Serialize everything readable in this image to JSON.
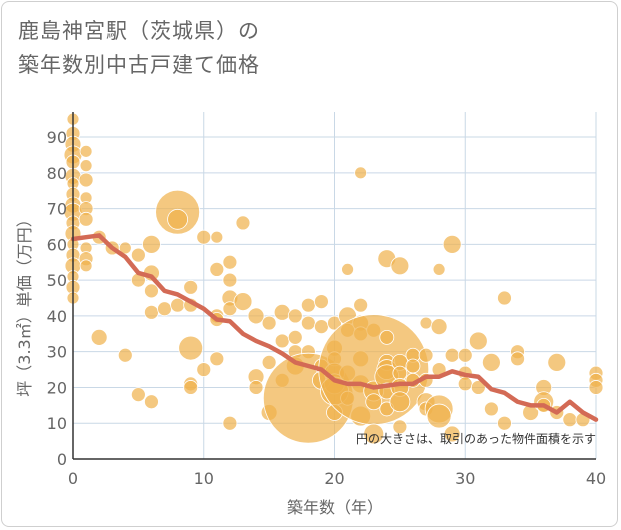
{
  "title_lines": [
    "鹿島神宮駅（茨城県）の",
    "築年数別中古戸建て価格"
  ],
  "note": "円の大きさは、取引のあった物件面積を示す",
  "colors": {
    "bubble": "#f0b04a",
    "line": "#d36a55",
    "grid": "#c9d8e6",
    "axis": "#333333",
    "text": "#666666"
  },
  "chart_data": {
    "type": "scatter",
    "xlabel": "築年数（年）",
    "ylabel": "坪（3.3㎡）単価（万円）",
    "xlim": [
      0,
      40
    ],
    "ylim": [
      0,
      97
    ],
    "xticks": [
      0,
      10,
      20,
      30,
      40
    ],
    "yticks": [
      0,
      10,
      20,
      30,
      40,
      50,
      60,
      70,
      80,
      90
    ],
    "grid": true,
    "bubbles": [
      {
        "x": 0,
        "y": 95,
        "s": 6
      },
      {
        "x": 0,
        "y": 91,
        "s": 7
      },
      {
        "x": 0,
        "y": 88,
        "s": 8
      },
      {
        "x": 0,
        "y": 85,
        "s": 9
      },
      {
        "x": 0,
        "y": 83,
        "s": 7
      },
      {
        "x": 0,
        "y": 79,
        "s": 8
      },
      {
        "x": 0,
        "y": 77,
        "s": 6
      },
      {
        "x": 0,
        "y": 74,
        "s": 7
      },
      {
        "x": 0,
        "y": 71,
        "s": 8
      },
      {
        "x": 0,
        "y": 69,
        "s": 9
      },
      {
        "x": 0,
        "y": 66,
        "s": 7
      },
      {
        "x": 0,
        "y": 63,
        "s": 8
      },
      {
        "x": 0,
        "y": 60,
        "s": 6
      },
      {
        "x": 0,
        "y": 57,
        "s": 7
      },
      {
        "x": 0,
        "y": 54,
        "s": 8
      },
      {
        "x": 0,
        "y": 51,
        "s": 6
      },
      {
        "x": 0,
        "y": 48,
        "s": 7
      },
      {
        "x": 0,
        "y": 45,
        "s": 6
      },
      {
        "x": 1,
        "y": 86,
        "s": 6
      },
      {
        "x": 1,
        "y": 82,
        "s": 6
      },
      {
        "x": 1,
        "y": 78,
        "s": 7
      },
      {
        "x": 1,
        "y": 73,
        "s": 6
      },
      {
        "x": 1,
        "y": 70,
        "s": 7
      },
      {
        "x": 1,
        "y": 67,
        "s": 7
      },
      {
        "x": 1,
        "y": 59,
        "s": 6
      },
      {
        "x": 1,
        "y": 56,
        "s": 7
      },
      {
        "x": 1,
        "y": 54,
        "s": 6
      },
      {
        "x": 2,
        "y": 62,
        "s": 7
      },
      {
        "x": 2,
        "y": 34,
        "s": 8
      },
      {
        "x": 3,
        "y": 59,
        "s": 7
      },
      {
        "x": 4,
        "y": 59,
        "s": 6
      },
      {
        "x": 4,
        "y": 29,
        "s": 7
      },
      {
        "x": 5,
        "y": 57,
        "s": 7
      },
      {
        "x": 5,
        "y": 50,
        "s": 7
      },
      {
        "x": 5,
        "y": 18,
        "s": 7
      },
      {
        "x": 6,
        "y": 60,
        "s": 9
      },
      {
        "x": 6,
        "y": 52,
        "s": 8
      },
      {
        "x": 6,
        "y": 47,
        "s": 7
      },
      {
        "x": 6,
        "y": 41,
        "s": 7
      },
      {
        "x": 6,
        "y": 16,
        "s": 7
      },
      {
        "x": 7,
        "y": 42,
        "s": 7
      },
      {
        "x": 8,
        "y": 69,
        "s": 22
      },
      {
        "x": 8,
        "y": 67,
        "s": 10
      },
      {
        "x": 8,
        "y": 43,
        "s": 7
      },
      {
        "x": 9,
        "y": 48,
        "s": 7
      },
      {
        "x": 9,
        "y": 43,
        "s": 7
      },
      {
        "x": 9,
        "y": 31,
        "s": 12
      },
      {
        "x": 9,
        "y": 21,
        "s": 7
      },
      {
        "x": 9,
        "y": 20,
        "s": 7
      },
      {
        "x": 10,
        "y": 62,
        "s": 7
      },
      {
        "x": 10,
        "y": 25,
        "s": 7
      },
      {
        "x": 11,
        "y": 62,
        "s": 6
      },
      {
        "x": 11,
        "y": 53,
        "s": 7
      },
      {
        "x": 11,
        "y": 40,
        "s": 7
      },
      {
        "x": 11,
        "y": 39,
        "s": 7
      },
      {
        "x": 11,
        "y": 28,
        "s": 7
      },
      {
        "x": 12,
        "y": 55,
        "s": 7
      },
      {
        "x": 12,
        "y": 50,
        "s": 7
      },
      {
        "x": 12,
        "y": 45,
        "s": 8
      },
      {
        "x": 12,
        "y": 42,
        "s": 7
      },
      {
        "x": 12,
        "y": 10,
        "s": 7
      },
      {
        "x": 13,
        "y": 66,
        "s": 7
      },
      {
        "x": 13,
        "y": 44,
        "s": 9
      },
      {
        "x": 14,
        "y": 40,
        "s": 8
      },
      {
        "x": 14,
        "y": 23,
        "s": 8
      },
      {
        "x": 14,
        "y": 20,
        "s": 7
      },
      {
        "x": 15,
        "y": 38,
        "s": 7
      },
      {
        "x": 15,
        "y": 27,
        "s": 7
      },
      {
        "x": 15,
        "y": 13,
        "s": 8
      },
      {
        "x": 16,
        "y": 41,
        "s": 8
      },
      {
        "x": 16,
        "y": 33,
        "s": 7
      },
      {
        "x": 16,
        "y": 22,
        "s": 7
      },
      {
        "x": 17,
        "y": 40,
        "s": 7
      },
      {
        "x": 17,
        "y": 34,
        "s": 7
      },
      {
        "x": 17,
        "y": 30,
        "s": 7
      },
      {
        "x": 17,
        "y": 26,
        "s": 9
      },
      {
        "x": 18,
        "y": 43,
        "s": 7
      },
      {
        "x": 18,
        "y": 38,
        "s": 7
      },
      {
        "x": 18,
        "y": 30,
        "s": 7
      },
      {
        "x": 18,
        "y": 17,
        "s": 45
      },
      {
        "x": 19,
        "y": 44,
        "s": 7
      },
      {
        "x": 19,
        "y": 37,
        "s": 7
      },
      {
        "x": 19,
        "y": 26,
        "s": 7
      },
      {
        "x": 19,
        "y": 22,
        "s": 9
      },
      {
        "x": 20,
        "y": 38,
        "s": 7
      },
      {
        "x": 20,
        "y": 31,
        "s": 8
      },
      {
        "x": 20,
        "y": 28,
        "s": 7
      },
      {
        "x": 20,
        "y": 24,
        "s": 10
      },
      {
        "x": 20,
        "y": 21,
        "s": 10
      },
      {
        "x": 20,
        "y": 19,
        "s": 14
      },
      {
        "x": 20,
        "y": 13,
        "s": 8
      },
      {
        "x": 21,
        "y": 53,
        "s": 6
      },
      {
        "x": 21,
        "y": 40,
        "s": 9
      },
      {
        "x": 21,
        "y": 36,
        "s": 7
      },
      {
        "x": 21,
        "y": 24,
        "s": 8
      },
      {
        "x": 21,
        "y": 17,
        "s": 7
      },
      {
        "x": 22,
        "y": 80,
        "s": 6
      },
      {
        "x": 22,
        "y": 43,
        "s": 7
      },
      {
        "x": 22,
        "y": 38,
        "s": 8
      },
      {
        "x": 22,
        "y": 35,
        "s": 7
      },
      {
        "x": 22,
        "y": 28,
        "s": 8
      },
      {
        "x": 22,
        "y": 21,
        "s": 9
      },
      {
        "x": 22,
        "y": 12,
        "s": 10
      },
      {
        "x": 23,
        "y": 36,
        "s": 7
      },
      {
        "x": 23,
        "y": 25,
        "s": 55
      },
      {
        "x": 23,
        "y": 19,
        "s": 10
      },
      {
        "x": 23,
        "y": 16,
        "s": 8
      },
      {
        "x": 23,
        "y": 7,
        "s": 10
      },
      {
        "x": 24,
        "y": 56,
        "s": 9
      },
      {
        "x": 24,
        "y": 34,
        "s": 7
      },
      {
        "x": 24,
        "y": 27,
        "s": 8
      },
      {
        "x": 24,
        "y": 25,
        "s": 10
      },
      {
        "x": 24,
        "y": 23,
        "s": 12
      },
      {
        "x": 24,
        "y": 19,
        "s": 8
      },
      {
        "x": 24,
        "y": 14,
        "s": 7
      },
      {
        "x": 25,
        "y": 54,
        "s": 9
      },
      {
        "x": 25,
        "y": 27,
        "s": 8
      },
      {
        "x": 25,
        "y": 24,
        "s": 7
      },
      {
        "x": 25,
        "y": 20,
        "s": 9
      },
      {
        "x": 25,
        "y": 16,
        "s": 10
      },
      {
        "x": 25,
        "y": 9,
        "s": 7
      },
      {
        "x": 26,
        "y": 29,
        "s": 7
      },
      {
        "x": 26,
        "y": 26,
        "s": 7
      },
      {
        "x": 26,
        "y": 22,
        "s": 7
      },
      {
        "x": 27,
        "y": 38,
        "s": 6
      },
      {
        "x": 27,
        "y": 29,
        "s": 7
      },
      {
        "x": 27,
        "y": 22,
        "s": 7
      },
      {
        "x": 27,
        "y": 16,
        "s": 9
      },
      {
        "x": 27,
        "y": 14,
        "s": 7
      },
      {
        "x": 28,
        "y": 53,
        "s": 6
      },
      {
        "x": 28,
        "y": 37,
        "s": 8
      },
      {
        "x": 28,
        "y": 25,
        "s": 7
      },
      {
        "x": 28,
        "y": 14,
        "s": 14
      },
      {
        "x": 28,
        "y": 12,
        "s": 12
      },
      {
        "x": 29,
        "y": 60,
        "s": 9
      },
      {
        "x": 29,
        "y": 29,
        "s": 7
      },
      {
        "x": 29,
        "y": 7,
        "s": 8
      },
      {
        "x": 30,
        "y": 29,
        "s": 7
      },
      {
        "x": 30,
        "y": 24,
        "s": 7
      },
      {
        "x": 30,
        "y": 21,
        "s": 7
      },
      {
        "x": 31,
        "y": 33,
        "s": 9
      },
      {
        "x": 31,
        "y": 20,
        "s": 7
      },
      {
        "x": 32,
        "y": 27,
        "s": 9
      },
      {
        "x": 32,
        "y": 14,
        "s": 7
      },
      {
        "x": 33,
        "y": 45,
        "s": 7
      },
      {
        "x": 33,
        "y": 10,
        "s": 7
      },
      {
        "x": 34,
        "y": 30,
        "s": 7
      },
      {
        "x": 34,
        "y": 28,
        "s": 7
      },
      {
        "x": 35,
        "y": 13,
        "s": 8
      },
      {
        "x": 36,
        "y": 20,
        "s": 8
      },
      {
        "x": 36,
        "y": 16,
        "s": 10
      },
      {
        "x": 36,
        "y": 15,
        "s": 7
      },
      {
        "x": 37,
        "y": 27,
        "s": 9
      },
      {
        "x": 37,
        "y": 13,
        "s": 7
      },
      {
        "x": 38,
        "y": 11,
        "s": 7
      },
      {
        "x": 39,
        "y": 11,
        "s": 7
      },
      {
        "x": 40,
        "y": 24,
        "s": 7
      },
      {
        "x": 40,
        "y": 22,
        "s": 7
      },
      {
        "x": 40,
        "y": 20,
        "s": 7
      }
    ],
    "trend": {
      "x": [
        0,
        1,
        2,
        3,
        4,
        5,
        6,
        7,
        8,
        9,
        10,
        11,
        12,
        13,
        14,
        15,
        16,
        17,
        18,
        19,
        20,
        21,
        22,
        23,
        24,
        25,
        26,
        27,
        28,
        29,
        30,
        31,
        32,
        33,
        34,
        35,
        36,
        37,
        38,
        39,
        40
      ],
      "y": [
        61.5,
        62,
        62.5,
        59,
        56.5,
        52,
        51,
        47,
        46,
        44,
        42,
        39,
        38.5,
        35,
        33,
        31.5,
        29.5,
        27,
        26,
        25,
        22,
        21,
        21,
        20,
        20.5,
        21,
        21,
        23,
        23,
        24.5,
        23.5,
        23,
        19.5,
        18.5,
        16,
        15,
        15,
        13,
        16,
        13,
        11
      ]
    }
  }
}
